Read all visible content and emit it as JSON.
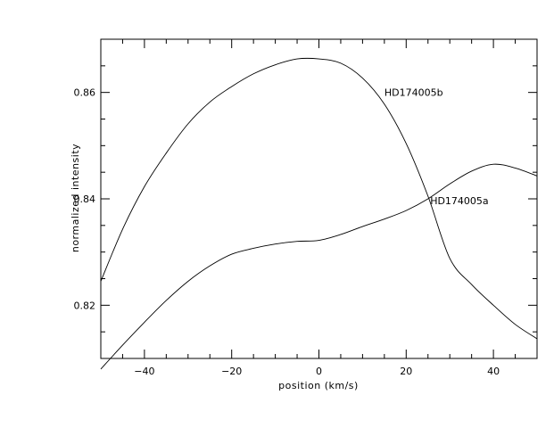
{
  "chart_data": {
    "type": "line",
    "xlabel": "position (km/s)",
    "ylabel": "normalized intensity",
    "xlim": [
      -50,
      50
    ],
    "ylim": [
      0.81,
      0.87
    ],
    "x_ticks": [
      -40,
      -20,
      0,
      20,
      40
    ],
    "x_tick_labels": [
      "−40",
      "−20",
      "0",
      "20",
      "40"
    ],
    "y_ticks": [
      0.82,
      0.84,
      0.86
    ],
    "y_tick_labels": [
      "0.82",
      "0.84",
      "0.86"
    ],
    "grid": false,
    "series": [
      {
        "name": "HD174005b",
        "label_at": [
          15,
          0.86
        ],
        "x": [
          -50,
          -45,
          -40,
          -35,
          -30,
          -25,
          -20,
          -15,
          -10,
          -5,
          0,
          5,
          10,
          15,
          20,
          25,
          30,
          35,
          40,
          45,
          50
        ],
        "y": [
          0.8245,
          0.8343,
          0.8423,
          0.8486,
          0.8541,
          0.8582,
          0.8611,
          0.8635,
          0.8652,
          0.8663,
          0.8663,
          0.8655,
          0.8627,
          0.8578,
          0.8504,
          0.8405,
          0.8288,
          0.8239,
          0.82,
          0.8164,
          0.8137
        ]
      },
      {
        "name": "HD174005a",
        "label_at": [
          25.5,
          0.8397
        ],
        "x": [
          -50,
          -45,
          -40,
          -35,
          -30,
          -25,
          -20,
          -15,
          -10,
          -5,
          0,
          5,
          10,
          15,
          20,
          25,
          30,
          35,
          40,
          45,
          50
        ],
        "y": [
          0.808,
          0.8125,
          0.8168,
          0.8209,
          0.8245,
          0.8274,
          0.8296,
          0.8307,
          0.8315,
          0.832,
          0.8322,
          0.8333,
          0.8348,
          0.8362,
          0.8378,
          0.84,
          0.8428,
          0.8452,
          0.8465,
          0.8458,
          0.8443
        ]
      }
    ]
  }
}
